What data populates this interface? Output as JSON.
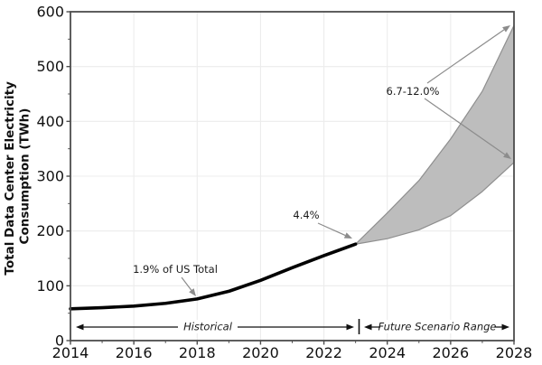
{
  "axes": {
    "ylabel_line1": "Total Data Center Electricity",
    "ylabel_line2": "Consumption (TWh)"
  },
  "annotations": [
    {
      "id": "pct-2018",
      "text": "1.9% of US Total",
      "points_to": {
        "year": 2018,
        "value": 76
      }
    },
    {
      "id": "pct-2023",
      "text": "4.4%",
      "points_to": {
        "year": 2023,
        "value": 176
      }
    },
    {
      "id": "pct-2028",
      "text": "6.7-12.0%",
      "points_to": {
        "year": 2028,
        "value_range": [
          325,
          575
        ]
      }
    },
    {
      "id": "historical-span",
      "text": "Historical",
      "span_years": [
        2014,
        2023
      ]
    },
    {
      "id": "future-span",
      "text": "Future Scenario Range",
      "span_years": [
        2023,
        2028
      ]
    }
  ],
  "colors": {
    "historical_line": "#000000",
    "band_fill": "#bdbdbd",
    "band_edge": "#8f8f8f",
    "annotation_arrow": "#8c8c8c",
    "span_arrow": "#111111",
    "grid": "#ececec",
    "spine": "#4d4d4d",
    "background": "#ffffff"
  },
  "chart_data": {
    "type": "area",
    "title": "",
    "xlabel": "",
    "ylabel": "Total Data Center Electricity Consumption (TWh)",
    "xlim": [
      2014,
      2028
    ],
    "ylim": [
      0,
      600
    ],
    "xticks": [
      2014,
      2016,
      2018,
      2020,
      2022,
      2024,
      2026,
      2028
    ],
    "yticks": [
      0,
      100,
      200,
      300,
      400,
      500,
      600
    ],
    "xminor": [
      2015,
      2017,
      2019,
      2021,
      2023,
      2025,
      2027
    ],
    "yminor": [
      50,
      150,
      250,
      350,
      450,
      550
    ],
    "grid": true,
    "legend": "none",
    "series": [
      {
        "name": "Historical",
        "type": "line",
        "x": [
          2014,
          2015,
          2016,
          2017,
          2018,
          2019,
          2020,
          2021,
          2022,
          2023
        ],
        "values": [
          58,
          60,
          63,
          68,
          76,
          90,
          110,
          133,
          155,
          176
        ]
      },
      {
        "name": "Future Scenario Range",
        "type": "band",
        "x": [
          2023,
          2024,
          2025,
          2026,
          2027,
          2028
        ],
        "upper": [
          176,
          233,
          292,
          368,
          455,
          575
        ],
        "lower": [
          176,
          186,
          202,
          228,
          272,
          325
        ]
      }
    ]
  }
}
